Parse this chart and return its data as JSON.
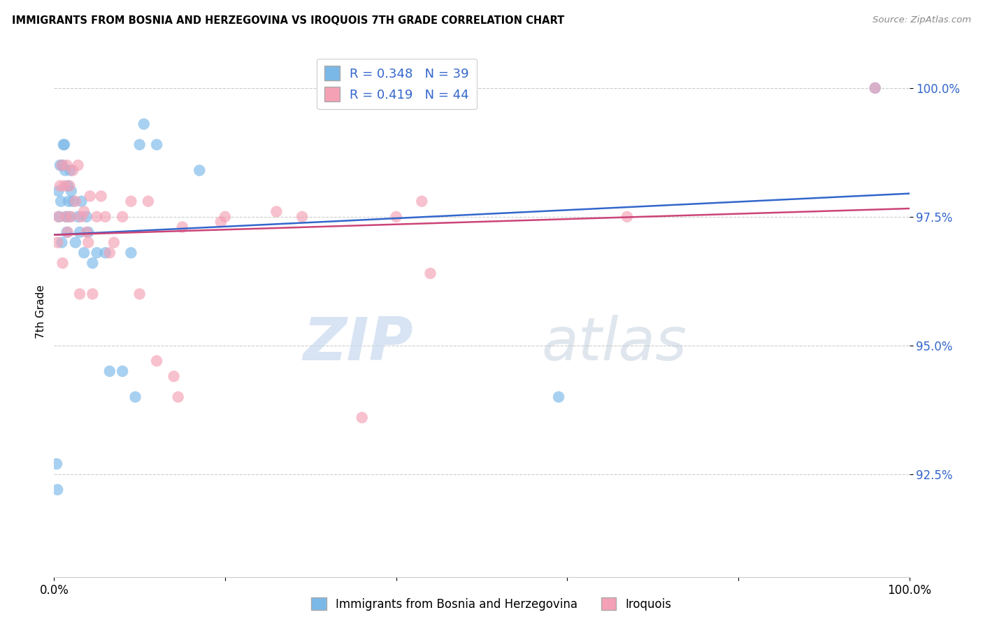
{
  "title": "IMMIGRANTS FROM BOSNIA AND HERZEGOVINA VS IROQUOIS 7TH GRADE CORRELATION CHART",
  "source": "Source: ZipAtlas.com",
  "ylabel": "7th Grade",
  "ylabel_ticks": [
    "92.5%",
    "95.0%",
    "97.5%",
    "100.0%"
  ],
  "ylabel_tick_vals": [
    0.925,
    0.95,
    0.975,
    1.0
  ],
  "xlim": [
    0.0,
    1.0
  ],
  "ylim": [
    0.905,
    1.008
  ],
  "blue_color": "#7ab8e8",
  "pink_color": "#f4a0b5",
  "blue_line_color": "#3366cc",
  "pink_line_color": "#cc4477",
  "legend_R_blue": "0.348",
  "legend_N_blue": "39",
  "legend_R_pink": "0.419",
  "legend_N_pink": "44",
  "blue_x": [
    0.003,
    0.004,
    0.005,
    0.006,
    0.007,
    0.008,
    0.009,
    0.01,
    0.011,
    0.012,
    0.013,
    0.014,
    0.015,
    0.016,
    0.017,
    0.018,
    0.019,
    0.02,
    0.022,
    0.025,
    0.028,
    0.03,
    0.032,
    0.035,
    0.038,
    0.04,
    0.045,
    0.05,
    0.06,
    0.065,
    0.08,
    0.09,
    0.095,
    0.1,
    0.105,
    0.12,
    0.17,
    0.59,
    0.96
  ],
  "blue_y": [
    0.927,
    0.922,
    0.98,
    0.975,
    0.985,
    0.978,
    0.97,
    0.985,
    0.989,
    0.989,
    0.984,
    0.975,
    0.972,
    0.981,
    0.978,
    0.975,
    0.984,
    0.98,
    0.978,
    0.97,
    0.975,
    0.972,
    0.978,
    0.968,
    0.975,
    0.972,
    0.966,
    0.968,
    0.968,
    0.945,
    0.945,
    0.968,
    0.94,
    0.989,
    0.993,
    0.989,
    0.984,
    0.94,
    1.0
  ],
  "pink_x": [
    0.004,
    0.005,
    0.007,
    0.009,
    0.01,
    0.012,
    0.014,
    0.015,
    0.016,
    0.018,
    0.02,
    0.022,
    0.025,
    0.028,
    0.03,
    0.032,
    0.035,
    0.038,
    0.04,
    0.042,
    0.045,
    0.05,
    0.055,
    0.06,
    0.065,
    0.07,
    0.08,
    0.09,
    0.1,
    0.11,
    0.12,
    0.14,
    0.145,
    0.15,
    0.195,
    0.2,
    0.26,
    0.29,
    0.36,
    0.4,
    0.43,
    0.44,
    0.67,
    0.96
  ],
  "pink_y": [
    0.97,
    0.975,
    0.981,
    0.985,
    0.966,
    0.981,
    0.975,
    0.985,
    0.972,
    0.981,
    0.975,
    0.984,
    0.978,
    0.985,
    0.96,
    0.975,
    0.976,
    0.972,
    0.97,
    0.979,
    0.96,
    0.975,
    0.979,
    0.975,
    0.968,
    0.97,
    0.975,
    0.978,
    0.96,
    0.978,
    0.947,
    0.944,
    0.94,
    0.973,
    0.974,
    0.975,
    0.976,
    0.975,
    0.936,
    0.975,
    0.978,
    0.964,
    0.975,
    1.0
  ],
  "watermark_zip": "ZIP",
  "watermark_atlas": "atlas",
  "grid_color": "#cccccc",
  "tick_color": "#3366cc"
}
